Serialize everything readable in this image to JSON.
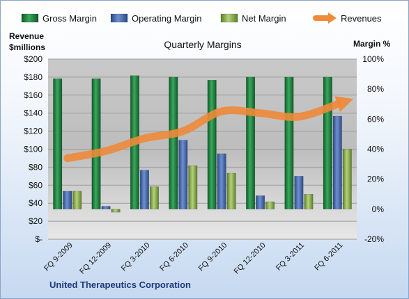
{
  "chart_data": {
    "type": "bar",
    "title": "Quarterly Margins",
    "company": "United Therapeutics Corporation",
    "left_axis_title": [
      "Revenue",
      "$millions"
    ],
    "right_axis_title": "Margin %",
    "categories": [
      "FQ 9-2009",
      "FQ 12-2009",
      "FQ 3-2010",
      "FQ 6-2010",
      "FQ 9-2010",
      "FQ 12-2010",
      "FQ 3-2011",
      "FQ 6-2011"
    ],
    "left_axis": {
      "min": 0,
      "max": 200,
      "step": 20,
      "tick_labels": [
        "$-",
        "$20",
        "$40",
        "$60",
        "$80",
        "$100",
        "$120",
        "$140",
        "$160",
        "$180",
        "$200"
      ]
    },
    "right_axis": {
      "min": -20,
      "max": 100,
      "step": 20,
      "tick_labels": [
        "-20%",
        "0%",
        "20%",
        "40%",
        "60%",
        "80%",
        "100%"
      ]
    },
    "series": [
      {
        "name": "Gross Margin",
        "axis": "right",
        "kind": "bar",
        "color": "#1f7a3c",
        "values": [
          87,
          87,
          89,
          88,
          86,
          88,
          88,
          88
        ]
      },
      {
        "name": "Operating Margin",
        "axis": "right",
        "kind": "bar",
        "color": "#3f62a8",
        "values": [
          12,
          2,
          26,
          46,
          37,
          9,
          22,
          62
        ]
      },
      {
        "name": "Net Margin",
        "axis": "right",
        "kind": "bar",
        "color": "#8cb04a",
        "values": [
          12,
          -2,
          15,
          29,
          24,
          5,
          10,
          40
        ]
      },
      {
        "name": "Revenues",
        "axis": "left",
        "kind": "line",
        "color": "#ee8a3a",
        "values": [
          90,
          98,
          112,
          120,
          142,
          140,
          136,
          150
        ]
      }
    ],
    "legend_position": "top",
    "grid": true
  }
}
